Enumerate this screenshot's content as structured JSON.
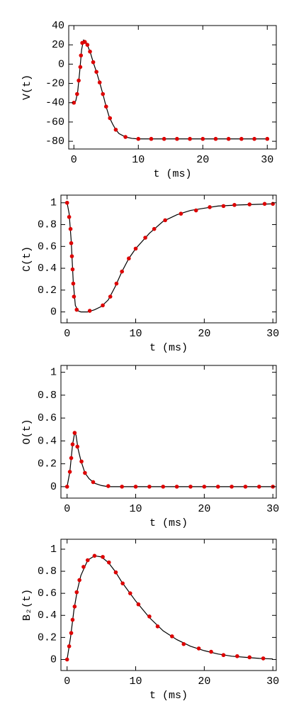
{
  "chart_data": [
    {
      "type": "line",
      "xlabel": "t (ms)",
      "ylabel": "V(t)",
      "xlim": [
        -0.8,
        31.4
      ],
      "ylim": [
        -88,
        40
      ],
      "xticks": [
        0,
        10,
        20,
        30
      ],
      "yticks": [
        -80,
        -60,
        -40,
        -20,
        0,
        20,
        40
      ],
      "series": [
        {
          "color": "#000000",
          "x": [
            0,
            0.3,
            0.6,
            0.9,
            1.2,
            1.5,
            1.8,
            2.2,
            2.6,
            3,
            3.5,
            4,
            4.5,
            5,
            5.5,
            6,
            6.5,
            7,
            8,
            9,
            10,
            30
          ],
          "values": [
            -40,
            -38,
            -28,
            -8,
            15,
            25,
            24,
            18,
            11,
            2,
            -8,
            -19,
            -31,
            -44,
            -55,
            -62,
            -68,
            -72,
            -75.5,
            -77,
            -77.5,
            -77.5
          ]
        },
        {
          "color": "#dd0000",
          "marker": "circle",
          "x": [
            0,
            0.5,
            0.75,
            1,
            1.1,
            1.3,
            1.7,
            2.1,
            2.5,
            3,
            3.5,
            4,
            4.5,
            5,
            5.6,
            6.5,
            8,
            10,
            12,
            14,
            16,
            18,
            20,
            22,
            24,
            26,
            28,
            30
          ],
          "values": [
            -40,
            -31,
            -17,
            -3,
            9,
            22,
            23,
            20,
            13,
            2,
            -8,
            -19,
            -31,
            -44,
            -56,
            -68,
            -75.5,
            -77.5,
            -77.5,
            -77.5,
            -77.5,
            -77.5,
            -77.5,
            -77.5,
            -77.5,
            -77.5,
            -77.5,
            -77.5
          ]
        }
      ]
    },
    {
      "type": "line",
      "xlabel": "t (ms)",
      "ylabel": "C(t)",
      "xlim": [
        -0.9,
        30.5
      ],
      "ylim": [
        -0.1,
        1.07
      ],
      "xticks": [
        0,
        10,
        20,
        30
      ],
      "yticks": [
        0,
        0.2,
        0.4,
        0.6,
        0.8,
        1
      ],
      "series": [
        {
          "color": "#000000",
          "x": [
            0,
            0.3,
            0.6,
            0.9,
            1.2,
            1.6,
            2,
            3,
            4,
            5,
            6,
            7,
            8,
            9,
            10,
            12,
            14,
            16,
            18,
            20,
            22,
            25,
            30
          ],
          "values": [
            1,
            0.9,
            0.65,
            0.27,
            0.06,
            0.01,
            0,
            0,
            0.02,
            0.05,
            0.11,
            0.23,
            0.37,
            0.49,
            0.58,
            0.72,
            0.83,
            0.89,
            0.93,
            0.95,
            0.97,
            0.98,
            0.99
          ]
        },
        {
          "color": "#dd0000",
          "marker": "circle",
          "x": [
            0,
            0.3,
            0.5,
            0.6,
            0.7,
            0.8,
            0.9,
            1,
            1.4,
            3.3,
            5.2,
            6.3,
            7.2,
            8,
            9,
            10,
            11.4,
            12.7,
            14.3,
            16.6,
            18.8,
            20.8,
            22.8,
            24.4,
            26.6,
            28.8,
            30
          ],
          "values": [
            1,
            0.87,
            0.76,
            0.63,
            0.51,
            0.39,
            0.26,
            0.14,
            0.02,
            0.01,
            0.06,
            0.14,
            0.26,
            0.37,
            0.49,
            0.58,
            0.68,
            0.76,
            0.84,
            0.9,
            0.93,
            0.96,
            0.97,
            0.98,
            0.985,
            0.99,
            0.99
          ]
        }
      ]
    },
    {
      "type": "line",
      "xlabel": "t (ms)",
      "ylabel": "O(t)",
      "xlim": [
        -0.9,
        30.5
      ],
      "ylim": [
        -0.1,
        1.06
      ],
      "xticks": [
        0,
        10,
        20,
        30
      ],
      "yticks": [
        0,
        0.2,
        0.4,
        0.6,
        0.8,
        1
      ],
      "series": [
        {
          "color": "#000000",
          "x": [
            0,
            0.4,
            0.8,
            1.1,
            1.3,
            1.6,
            2,
            2.6,
            3.2,
            4,
            5,
            6,
            30
          ],
          "values": [
            0,
            0.13,
            0.37,
            0.47,
            0.45,
            0.33,
            0.23,
            0.12,
            0.07,
            0.03,
            0.01,
            0,
            0
          ]
        },
        {
          "color": "#dd0000",
          "marker": "circle",
          "x": [
            0,
            0.4,
            0.6,
            0.8,
            1.1,
            1.5,
            2.1,
            2.6,
            3.8,
            6,
            8,
            10,
            12,
            14,
            16,
            18,
            20,
            22,
            24,
            26,
            28,
            30
          ],
          "values": [
            0,
            0.13,
            0.25,
            0.37,
            0.47,
            0.35,
            0.22,
            0.12,
            0.04,
            0.005,
            0,
            0,
            0,
            0,
            0,
            0,
            0,
            0,
            0,
            0,
            0,
            0
          ]
        }
      ]
    },
    {
      "type": "line",
      "xlabel": "t (ms)",
      "ylabel": "B₂(t)",
      "xlim": [
        -0.9,
        30.5
      ],
      "ylim": [
        -0.1,
        1.09
      ],
      "xticks": [
        0,
        10,
        20,
        30
      ],
      "yticks": [
        0,
        0.2,
        0.4,
        0.6,
        0.8,
        1
      ],
      "series": [
        {
          "color": "#000000",
          "x": [
            0,
            0.5,
            1,
            1.5,
            2,
            3,
            4,
            5,
            6,
            7,
            8,
            10,
            12,
            14,
            16,
            18,
            20,
            22,
            24,
            26,
            28,
            30
          ],
          "values": [
            0,
            0.2,
            0.45,
            0.63,
            0.76,
            0.9,
            0.94,
            0.93,
            0.88,
            0.8,
            0.7,
            0.53,
            0.38,
            0.26,
            0.18,
            0.12,
            0.08,
            0.05,
            0.03,
            0.02,
            0.01,
            0.005
          ]
        },
        {
          "color": "#dd0000",
          "marker": "circle",
          "x": [
            0,
            0.3,
            0.6,
            0.8,
            1.1,
            1.4,
            1.8,
            2.4,
            3,
            4,
            5.2,
            6.1,
            7.1,
            8.1,
            9.2,
            10.4,
            12,
            13.2,
            15.3,
            17,
            19.2,
            21,
            22.8,
            24.8,
            26.6,
            28.6
          ],
          "values": [
            0,
            0.12,
            0.24,
            0.36,
            0.48,
            0.61,
            0.72,
            0.84,
            0.9,
            0.94,
            0.93,
            0.88,
            0.79,
            0.69,
            0.6,
            0.5,
            0.39,
            0.3,
            0.21,
            0.14,
            0.1,
            0.07,
            0.04,
            0.03,
            0.02,
            0.01
          ]
        }
      ]
    }
  ]
}
